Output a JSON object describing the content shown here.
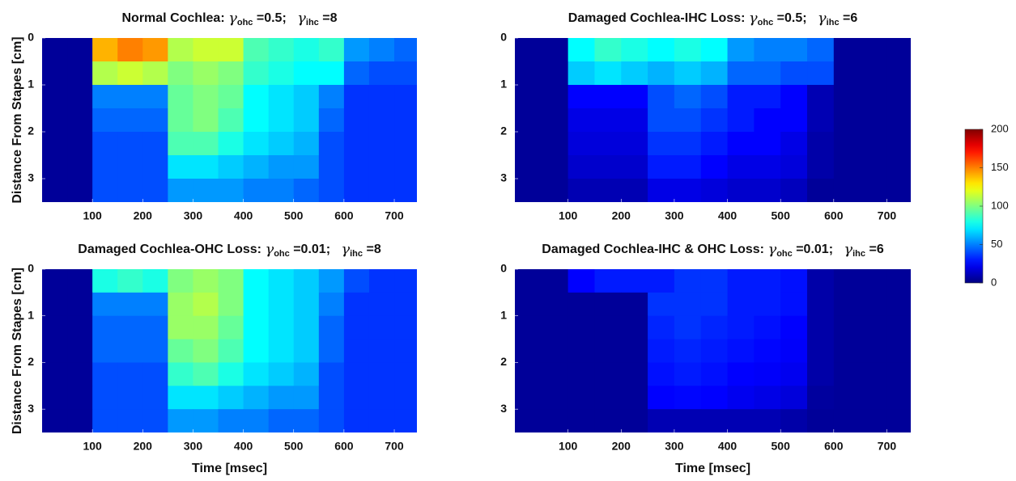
{
  "chart_data": [
    {
      "type": "heatmap",
      "title": [
        "Normal Cochlea: ",
        "γ",
        "ohc",
        " =0.5;   ",
        "γ",
        "ihc",
        " =8"
      ],
      "ylabel": "Distance From Stapes [cm]",
      "xlim": [
        0,
        745
      ],
      "ylim": [
        0,
        3.5
      ],
      "xticks": [
        100,
        200,
        300,
        400,
        500,
        600,
        700
      ],
      "yticks": [
        0,
        1,
        2,
        3
      ],
      "x_edges": [
        0,
        50,
        100,
        150,
        200,
        250,
        300,
        350,
        400,
        450,
        500,
        550,
        600,
        650,
        700,
        750
      ],
      "y_edges": [
        0,
        0.5,
        1,
        1.5,
        2,
        2.5,
        3,
        3.5
      ],
      "z": [
        [
          5,
          5,
          140,
          150,
          145,
          110,
          115,
          115,
          90,
          85,
          80,
          85,
          55,
          50,
          45
        ],
        [
          5,
          5,
          110,
          115,
          110,
          100,
          105,
          100,
          85,
          80,
          75,
          75,
          45,
          40,
          40
        ],
        [
          5,
          5,
          50,
          50,
          50,
          95,
          100,
          95,
          75,
          70,
          65,
          50,
          35,
          35,
          35
        ],
        [
          5,
          5,
          45,
          45,
          45,
          95,
          100,
          90,
          75,
          70,
          65,
          45,
          35,
          35,
          35
        ],
        [
          5,
          5,
          40,
          40,
          40,
          90,
          90,
          80,
          70,
          65,
          60,
          40,
          35,
          35,
          35
        ],
        [
          5,
          5,
          40,
          40,
          40,
          70,
          70,
          65,
          60,
          55,
          55,
          40,
          35,
          35,
          35
        ],
        [
          5,
          5,
          40,
          40,
          40,
          55,
          55,
          55,
          50,
          50,
          45,
          40,
          35,
          35,
          35
        ]
      ]
    },
    {
      "type": "heatmap",
      "title": [
        "Damaged Cochlea-IHC Loss: ",
        "γ",
        "ohc",
        " =0.5;   ",
        "γ",
        "ihc",
        " =6"
      ],
      "xlim": [
        0,
        745
      ],
      "ylim": [
        0,
        3.5
      ],
      "xticks": [
        100,
        200,
        300,
        400,
        500,
        600,
        700
      ],
      "yticks": [
        0,
        1,
        2,
        3
      ],
      "x_edges": [
        0,
        50,
        100,
        150,
        200,
        250,
        300,
        350,
        400,
        450,
        500,
        550,
        600,
        650,
        700,
        750
      ],
      "y_edges": [
        0,
        0.5,
        1,
        1.5,
        2,
        2.5,
        3,
        3.5
      ],
      "z": [
        [
          5,
          5,
          75,
          85,
          80,
          75,
          80,
          75,
          55,
          50,
          50,
          45,
          5,
          5,
          5
        ],
        [
          5,
          5,
          65,
          70,
          65,
          60,
          65,
          60,
          45,
          45,
          40,
          40,
          5,
          5,
          5
        ],
        [
          5,
          5,
          25,
          25,
          25,
          40,
          45,
          40,
          30,
          30,
          25,
          10,
          5,
          5,
          5
        ],
        [
          5,
          5,
          20,
          20,
          20,
          40,
          40,
          35,
          30,
          25,
          25,
          10,
          5,
          5,
          5
        ],
        [
          5,
          5,
          18,
          18,
          18,
          35,
          35,
          30,
          25,
          25,
          20,
          8,
          5,
          5,
          5
        ],
        [
          5,
          5,
          15,
          15,
          15,
          30,
          30,
          25,
          20,
          20,
          18,
          8,
          5,
          5,
          5
        ],
        [
          5,
          5,
          10,
          10,
          10,
          20,
          20,
          18,
          15,
          15,
          12,
          5,
          5,
          5,
          5
        ]
      ]
    },
    {
      "type": "heatmap",
      "title": [
        "Damaged Cochlea-OHC Loss: ",
        "γ",
        "ohc",
        " =0.01;   ",
        "γ",
        "ihc",
        " =8"
      ],
      "ylabel": "Distance From Stapes [cm]",
      "xlabel": "Time [msec]",
      "xlim": [
        0,
        745
      ],
      "ylim": [
        0,
        3.5
      ],
      "xticks": [
        100,
        200,
        300,
        400,
        500,
        600,
        700
      ],
      "yticks": [
        0,
        1,
        2,
        3
      ],
      "x_edges": [
        0,
        50,
        100,
        150,
        200,
        250,
        300,
        350,
        400,
        450,
        500,
        550,
        600,
        650,
        700,
        750
      ],
      "y_edges": [
        0,
        0.5,
        1,
        1.5,
        2,
        2.5,
        3,
        3.5
      ],
      "z": [
        [
          5,
          5,
          80,
          85,
          80,
          100,
          105,
          100,
          75,
          70,
          65,
          55,
          40,
          35,
          35
        ],
        [
          5,
          5,
          50,
          50,
          50,
          105,
          110,
          100,
          75,
          70,
          65,
          50,
          35,
          35,
          35
        ],
        [
          5,
          5,
          45,
          45,
          45,
          105,
          105,
          95,
          75,
          70,
          65,
          45,
          35,
          35,
          35
        ],
        [
          5,
          5,
          45,
          45,
          45,
          95,
          100,
          90,
          75,
          70,
          65,
          45,
          35,
          35,
          35
        ],
        [
          5,
          5,
          40,
          40,
          40,
          85,
          90,
          80,
          70,
          65,
          60,
          40,
          35,
          35,
          35
        ],
        [
          5,
          5,
          40,
          40,
          40,
          70,
          70,
          65,
          60,
          55,
          55,
          40,
          35,
          35,
          35
        ],
        [
          5,
          5,
          40,
          40,
          40,
          55,
          55,
          50,
          50,
          45,
          45,
          40,
          35,
          35,
          35
        ]
      ]
    },
    {
      "type": "heatmap",
      "title": [
        "Damaged Cochlea-IHC & OHC Loss: ",
        "γ",
        "ohc",
        " =0.01;   ",
        "γ",
        "ihc",
        " =6"
      ],
      "xlabel": "Time [msec]",
      "xlim": [
        0,
        745
      ],
      "ylim": [
        0,
        3.5
      ],
      "xticks": [
        100,
        200,
        300,
        400,
        500,
        600,
        700
      ],
      "yticks": [
        0,
        1,
        2,
        3
      ],
      "x_edges": [
        0,
        50,
        100,
        150,
        200,
        250,
        300,
        350,
        400,
        450,
        500,
        550,
        600,
        650,
        700,
        750
      ],
      "y_edges": [
        0,
        0.5,
        1,
        1.5,
        2,
        2.5,
        3,
        3.5
      ],
      "z": [
        [
          5,
          5,
          25,
          30,
          30,
          30,
          35,
          35,
          30,
          30,
          28,
          8,
          5,
          5,
          5
        ],
        [
          5,
          5,
          5,
          5,
          5,
          35,
          35,
          35,
          30,
          30,
          28,
          8,
          5,
          5,
          5
        ],
        [
          5,
          5,
          5,
          5,
          5,
          32,
          35,
          32,
          30,
          28,
          25,
          8,
          5,
          5,
          5
        ],
        [
          5,
          5,
          5,
          5,
          5,
          30,
          32,
          30,
          28,
          26,
          24,
          8,
          5,
          5,
          5
        ],
        [
          5,
          5,
          5,
          5,
          5,
          28,
          30,
          28,
          25,
          24,
          22,
          8,
          5,
          5,
          5
        ],
        [
          5,
          5,
          5,
          5,
          5,
          25,
          26,
          25,
          22,
          20,
          18,
          6,
          5,
          5,
          5
        ],
        [
          5,
          5,
          5,
          5,
          5,
          10,
          10,
          10,
          10,
          10,
          8,
          5,
          5,
          5,
          5
        ]
      ]
    }
  ],
  "colorbar": {
    "clim": [
      0,
      200
    ],
    "ticks": [
      0,
      50,
      100,
      150,
      200
    ]
  }
}
